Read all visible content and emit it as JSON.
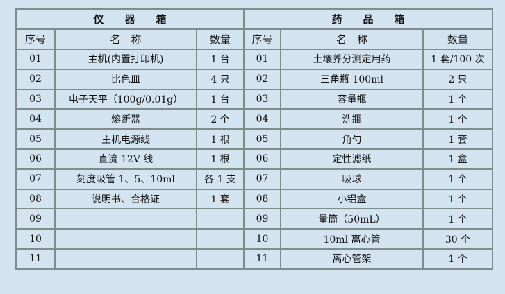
{
  "instruments": {
    "title": "仪　　器　　箱",
    "headers": {
      "no": "序号",
      "name": "名　称",
      "qty": "数量"
    },
    "rows": [
      {
        "no": "01",
        "name": "主机(内置打印机)",
        "qty": "1 台"
      },
      {
        "no": "02",
        "name": "比色皿",
        "qty": "4 只"
      },
      {
        "no": "03",
        "name": "电子天平（100g/0.01g）",
        "qty": "1 台"
      },
      {
        "no": "04",
        "name": "熔断器",
        "qty": "2 个"
      },
      {
        "no": "05",
        "name": "主机电源线",
        "qty": "1 根"
      },
      {
        "no": "06",
        "name": "直流 12V 线",
        "qty": "1 根"
      },
      {
        "no": "07",
        "name": "刻度吸管 1、5、10ml",
        "qty": "各 1 支"
      },
      {
        "no": "08",
        "name": "说明书、合格证",
        "qty": "1 套"
      },
      {
        "no": "09",
        "name": "",
        "qty": ""
      },
      {
        "no": "10",
        "name": "",
        "qty": ""
      },
      {
        "no": "11",
        "name": "",
        "qty": ""
      }
    ]
  },
  "reagents": {
    "title": "药　　品　　箱",
    "headers": {
      "no": "序号",
      "name": "名　称",
      "qty": "数量"
    },
    "rows": [
      {
        "no": "01",
        "name": "土壤养分测定用药",
        "qty": "1 套/100 次"
      },
      {
        "no": "02",
        "name": "三角瓶 100ml",
        "qty": "2 只"
      },
      {
        "no": "03",
        "name": "容量瓶",
        "qty": "1 个"
      },
      {
        "no": "04",
        "name": "洗瓶",
        "qty": "1 个"
      },
      {
        "no": "05",
        "name": "角勺",
        "qty": "1 套"
      },
      {
        "no": "06",
        "name": "定性滤纸",
        "qty": "1 盒"
      },
      {
        "no": "07",
        "name": "吸球",
        "qty": "1 个"
      },
      {
        "no": "08",
        "name": "小铝盒",
        "qty": "1 个"
      },
      {
        "no": "09",
        "name": "量筒（50mL）",
        "qty": "1 个"
      },
      {
        "no": "10",
        "name": "10ml 离心管",
        "qty": "30 个"
      },
      {
        "no": "11",
        "name": "离心管架",
        "qty": "1 个"
      }
    ]
  }
}
